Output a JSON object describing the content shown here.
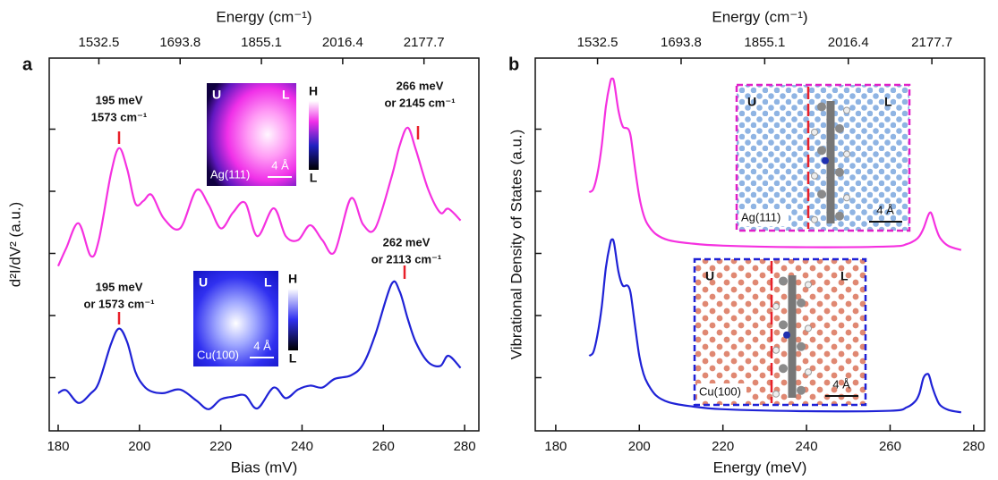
{
  "chart_data": [
    {
      "type": "line",
      "panel": "a",
      "x_title": "Bias (mV)",
      "x2_title": "Energy (cm⁻¹)",
      "y_title": "d²I/dV² (a.u.)",
      "xlim": [
        177.8,
        283.5
      ],
      "xticks": [
        180,
        200,
        220,
        240,
        260,
        280
      ],
      "x2lim": [
        1434.0,
        2286.6
      ],
      "x2ticks": [
        1532.5,
        1693.8,
        1855.1,
        2016.4,
        2177.7
      ],
      "ylim": [
        -0.05,
        9.43
      ],
      "x": [
        180,
        182,
        185,
        188,
        190,
        193,
        195,
        197,
        199,
        201,
        203,
        206,
        210,
        214,
        217,
        220,
        223,
        226,
        229,
        233,
        236,
        239,
        242,
        245,
        248,
        252,
        255,
        258,
        262,
        264,
        266,
        268,
        271,
        274,
        276,
        279
      ],
      "series": [
        {
          "color": "#f531e0",
          "values": [
            4.14,
            4.6,
            5.23,
            4.4,
            4.8,
            6.5,
            7.14,
            6.6,
            5.73,
            5.8,
            5.95,
            5.35,
            5.1,
            6.07,
            5.7,
            5.1,
            5.5,
            5.75,
            4.9,
            5.61,
            4.9,
            4.8,
            5.18,
            4.8,
            4.5,
            5.86,
            5.2,
            5.1,
            6.4,
            7.2,
            7.66,
            7.1,
            6.1,
            5.5,
            5.6,
            5.3
          ]
        },
        {
          "color": "#1f22d6",
          "values": [
            0.91,
            0.98,
            0.66,
            0.9,
            1.18,
            2.16,
            2.55,
            2.2,
            1.45,
            1.1,
            0.95,
            0.91,
            1.0,
            0.72,
            0.5,
            0.75,
            0.82,
            0.85,
            0.52,
            1.05,
            0.78,
            1.0,
            1.1,
            1.05,
            1.27,
            1.36,
            1.64,
            2.39,
            3.68,
            3.5,
            2.8,
            2.2,
            1.7,
            1.6,
            1.86,
            1.55
          ]
        }
      ],
      "annotations": [
        [
          "195 meV",
          "1573 cm⁻¹"
        ],
        [
          "266 meV",
          "or 2145 cm⁻¹"
        ],
        [
          "195 meV",
          "or 1573 cm⁻¹"
        ],
        [
          "262 meV",
          "or 2113 cm⁻¹"
        ]
      ],
      "insets": [
        {
          "left": "U",
          "right": "L",
          "substrate": "Ag(111)",
          "scale": "4 Å",
          "high": "H",
          "low": "L"
        },
        {
          "left": "U",
          "right": "L",
          "substrate": "Cu(100)",
          "scale": "4 Å",
          "high": "H",
          "low": "L"
        }
      ]
    },
    {
      "type": "line",
      "panel": "b",
      "x_title": "Energy (meV)",
      "x2_title": "Energy (cm⁻¹)",
      "y_title": "Vibrational Density of States (a.u.)",
      "xlim": [
        175.1,
        282.6
      ],
      "xticks": [
        180,
        200,
        220,
        240,
        260,
        280
      ],
      "x2lim": [
        1412.3,
        2279.4
      ],
      "x2ticks": [
        1532.5,
        1693.8,
        1855.1,
        2016.4,
        2177.7
      ],
      "ylim": [
        -0.05,
        9.43
      ],
      "x": [
        188,
        189,
        190,
        191,
        192,
        193,
        193.5,
        194,
        195,
        196,
        197,
        197.5,
        198,
        199,
        200,
        201,
        202,
        204,
        207,
        212,
        220,
        240,
        260,
        264,
        266,
        267,
        268,
        269,
        269.5,
        270,
        271,
        272,
        274,
        277
      ],
      "series": [
        {
          "color": "#f531e0",
          "values": [
            6.02,
            6.1,
            6.5,
            7.2,
            8.2,
            8.8,
            8.91,
            8.8,
            8.1,
            7.7,
            7.65,
            7.6,
            7.4,
            6.6,
            5.9,
            5.45,
            5.2,
            4.95,
            4.8,
            4.72,
            4.66,
            4.62,
            4.64,
            4.7,
            4.8,
            4.9,
            5.1,
            5.4,
            5.5,
            5.45,
            5.1,
            4.85,
            4.65,
            4.55
          ]
        },
        {
          "color": "#1f22d6",
          "values": [
            1.86,
            1.95,
            2.4,
            3.1,
            4.1,
            4.7,
            4.82,
            4.7,
            4.0,
            3.65,
            3.65,
            3.6,
            3.4,
            2.6,
            1.85,
            1.4,
            1.15,
            0.85,
            0.68,
            0.58,
            0.5,
            0.45,
            0.46,
            0.55,
            0.7,
            0.9,
            1.3,
            1.4,
            1.3,
            1.1,
            0.8,
            0.6,
            0.48,
            0.42
          ]
        }
      ],
      "insets": [
        {
          "left": "U",
          "right": "L",
          "substrate": "Ag(111)",
          "scale": "4 Å"
        },
        {
          "left": "U",
          "right": "L",
          "substrate": "Cu(100)",
          "scale": "4 Å"
        }
      ]
    }
  ]
}
